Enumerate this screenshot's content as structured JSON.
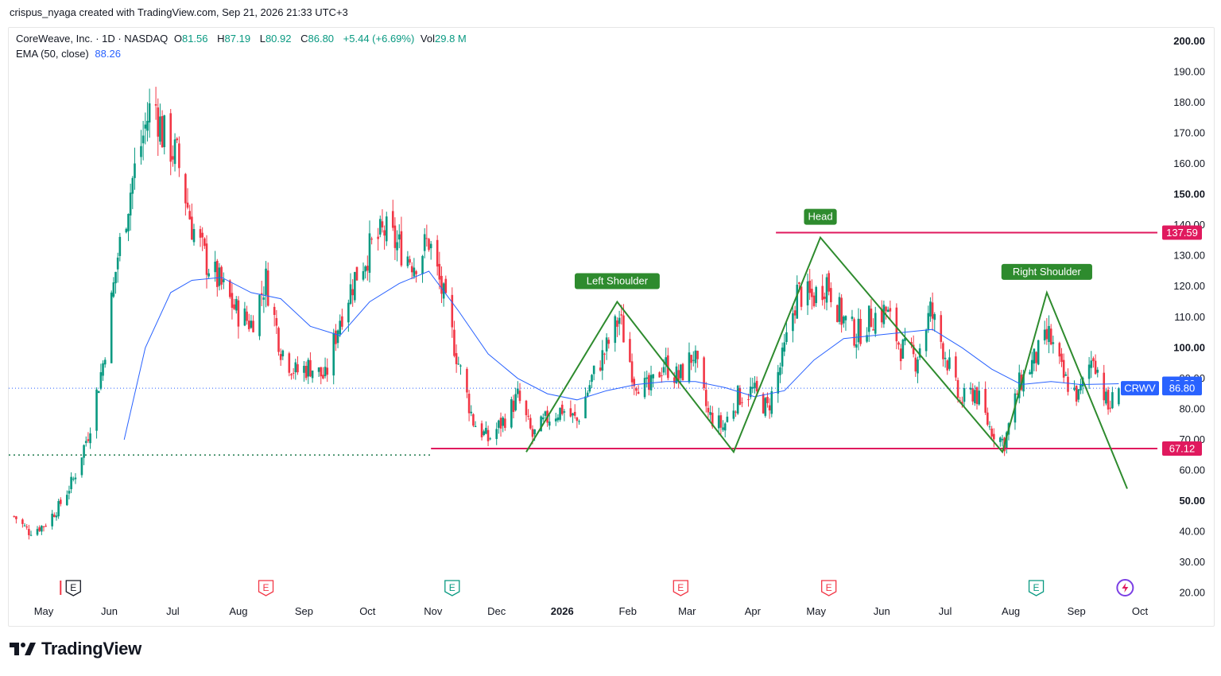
{
  "header": {
    "attribution": "crispus_nyaga created with TradingView.com, Sep 21, 2026 21:33 UTC+3"
  },
  "legend": {
    "symbol": "CoreWeave, Inc. · 1D · NASDAQ",
    "o_label": "O",
    "o_value": "81.56",
    "h_label": "H",
    "h_value": "87.19",
    "l_label": "L",
    "l_value": "80.92",
    "c_label": "C",
    "c_value": "86.80",
    "change": "+5.44 (+6.69%)",
    "vol_label": "Vol",
    "vol_value": "29.8 M",
    "ema_label": "EMA (50, close)",
    "ema_value": "88.26"
  },
  "footer": {
    "brand": "TradingView"
  },
  "colors": {
    "up": "#089981",
    "down": "#f23645",
    "ema": "#2962ff",
    "pattern": "#2e8b2e",
    "level": "#e0195e",
    "price_tag": "#2962ff",
    "dotted_green": "#1e7a4c"
  },
  "chart_data": {
    "type": "candlestick",
    "symbol": "CRWV",
    "y_axis": {
      "min": 15,
      "max": 205,
      "scale": "linear",
      "position": "right",
      "ticks": [
        "20.00",
        "30.00",
        "40.00",
        "50.00",
        "60.00",
        "70.00",
        "80.00",
        "90.00",
        "100.00",
        "110.00",
        "120.00",
        "130.00",
        "140.00",
        "150.00",
        "160.00",
        "170.00",
        "180.00",
        "190.00",
        "200.00"
      ],
      "bold_ticks": [
        "50.00",
        "100.00",
        "150.00",
        "200.00"
      ]
    },
    "x_axis": {
      "labels": [
        {
          "text": "May",
          "date": "2025-05-01"
        },
        {
          "text": "Jun",
          "date": "2025-06-01"
        },
        {
          "text": "Jul",
          "date": "2025-07-01"
        },
        {
          "text": "Aug",
          "date": "2025-08-01"
        },
        {
          "text": "Sep",
          "date": "2025-09-01"
        },
        {
          "text": "Oct",
          "date": "2025-10-01"
        },
        {
          "text": "Nov",
          "date": "2025-11-01"
        },
        {
          "text": "Dec",
          "date": "2025-12-01"
        },
        {
          "text": "2026",
          "date": "2026-01-01",
          "bold": true
        },
        {
          "text": "Feb",
          "date": "2026-02-01"
        },
        {
          "text": "Mar",
          "date": "2026-03-01"
        },
        {
          "text": "Apr",
          "date": "2026-04-01"
        },
        {
          "text": "May",
          "date": "2026-05-01"
        },
        {
          "text": "Jun",
          "date": "2026-06-01"
        },
        {
          "text": "Jul",
          "date": "2026-07-01"
        },
        {
          "text": "Aug",
          "date": "2026-08-01"
        },
        {
          "text": "Sep",
          "date": "2026-09-01"
        },
        {
          "text": "Oct",
          "date": "2026-10-01"
        }
      ]
    },
    "price_path": [
      [
        "2025-04-17",
        45
      ],
      [
        "2025-04-24",
        40
      ],
      [
        "2025-05-01",
        42
      ],
      [
        "2025-05-08",
        48
      ],
      [
        "2025-05-15",
        57
      ],
      [
        "2025-05-22",
        72
      ],
      [
        "2025-05-29",
        95
      ],
      [
        "2025-06-05",
        130
      ],
      [
        "2025-06-12",
        155
      ],
      [
        "2025-06-19",
        175
      ],
      [
        "2025-06-22",
        182
      ],
      [
        "2025-06-26",
        170
      ],
      [
        "2025-07-03",
        162
      ],
      [
        "2025-07-10",
        140
      ],
      [
        "2025-07-17",
        128
      ],
      [
        "2025-07-24",
        120
      ],
      [
        "2025-07-31",
        112
      ],
      [
        "2025-08-07",
        108
      ],
      [
        "2025-08-14",
        122
      ],
      [
        "2025-08-21",
        100
      ],
      [
        "2025-08-28",
        92
      ],
      [
        "2025-09-04",
        94
      ],
      [
        "2025-09-11",
        90
      ],
      [
        "2025-09-18",
        110
      ],
      [
        "2025-09-25",
        123
      ],
      [
        "2025-10-02",
        132
      ],
      [
        "2025-10-09",
        138
      ],
      [
        "2025-10-16",
        133
      ],
      [
        "2025-10-23",
        128
      ],
      [
        "2025-10-30",
        135
      ],
      [
        "2025-11-06",
        116
      ],
      [
        "2025-11-13",
        95
      ],
      [
        "2025-11-20",
        76
      ],
      [
        "2025-11-27",
        70
      ],
      [
        "2025-12-04",
        76
      ],
      [
        "2025-12-11",
        84
      ],
      [
        "2025-12-18",
        71
      ],
      [
        "2025-12-25",
        77
      ],
      [
        "2026-01-01",
        80
      ],
      [
        "2026-01-08",
        76
      ],
      [
        "2026-01-15",
        90
      ],
      [
        "2026-01-22",
        100
      ],
      [
        "2026-01-28",
        110
      ],
      [
        "2026-02-04",
        90
      ],
      [
        "2026-02-11",
        86
      ],
      [
        "2026-02-18",
        95
      ],
      [
        "2026-02-25",
        90
      ],
      [
        "2026-03-04",
        98
      ],
      [
        "2026-03-11",
        78
      ],
      [
        "2026-03-18",
        74
      ],
      [
        "2026-03-25",
        84
      ],
      [
        "2026-04-01",
        86
      ],
      [
        "2026-04-08",
        80
      ],
      [
        "2026-04-15",
        96
      ],
      [
        "2026-04-22",
        118
      ],
      [
        "2026-04-29",
        116
      ],
      [
        "2026-05-06",
        122
      ],
      [
        "2026-05-13",
        110
      ],
      [
        "2026-05-20",
        104
      ],
      [
        "2026-05-27",
        110
      ],
      [
        "2026-06-03",
        112
      ],
      [
        "2026-06-10",
        100
      ],
      [
        "2026-06-17",
        96
      ],
      [
        "2026-06-24",
        112
      ],
      [
        "2026-07-01",
        98
      ],
      [
        "2026-07-08",
        82
      ],
      [
        "2026-07-15",
        86
      ],
      [
        "2026-07-22",
        74
      ],
      [
        "2026-07-29",
        69
      ],
      [
        "2026-08-05",
        88
      ],
      [
        "2026-08-12",
        96
      ],
      [
        "2026-08-19",
        104
      ],
      [
        "2026-08-26",
        90
      ],
      [
        "2026-09-02",
        84
      ],
      [
        "2026-09-09",
        98
      ],
      [
        "2026-09-16",
        80
      ],
      [
        "2026-09-21",
        86.8
      ]
    ],
    "ema_path": [
      [
        "2025-06-08",
        70
      ],
      [
        "2025-06-18",
        100
      ],
      [
        "2025-06-30",
        118
      ],
      [
        "2025-07-10",
        122
      ],
      [
        "2025-07-24",
        123
      ],
      [
        "2025-08-07",
        118
      ],
      [
        "2025-08-21",
        116
      ],
      [
        "2025-09-04",
        107
      ],
      [
        "2025-09-18",
        104
      ],
      [
        "2025-10-02",
        115
      ],
      [
        "2025-10-16",
        121
      ],
      [
        "2025-10-30",
        125
      ],
      [
        "2025-11-13",
        112
      ],
      [
        "2025-11-27",
        98
      ],
      [
        "2025-12-11",
        90
      ],
      [
        "2025-12-25",
        85
      ],
      [
        "2026-01-08",
        83
      ],
      [
        "2026-01-22",
        86
      ],
      [
        "2026-02-05",
        88
      ],
      [
        "2026-02-19",
        89
      ],
      [
        "2026-03-05",
        89
      ],
      [
        "2026-03-19",
        87
      ],
      [
        "2026-04-02",
        84
      ],
      [
        "2026-04-16",
        86
      ],
      [
        "2026-04-30",
        96
      ],
      [
        "2026-05-14",
        103
      ],
      [
        "2026-05-28",
        104
      ],
      [
        "2026-06-11",
        105
      ],
      [
        "2026-06-25",
        106
      ],
      [
        "2026-07-09",
        100
      ],
      [
        "2026-07-23",
        93
      ],
      [
        "2026-08-06",
        88
      ],
      [
        "2026-08-20",
        89
      ],
      [
        "2026-09-03",
        88
      ],
      [
        "2026-09-21",
        88.26
      ]
    ],
    "pattern": {
      "name": "Head and Shoulders",
      "points": [
        [
          "2025-12-15",
          66
        ],
        [
          "2026-01-27",
          115
        ],
        [
          "2026-03-23",
          66
        ],
        [
          "2026-05-03",
          136
        ],
        [
          "2026-07-28",
          66
        ],
        [
          "2026-08-18",
          118
        ],
        [
          "2026-09-25",
          54
        ]
      ],
      "labels": [
        {
          "text": "Left Shoulder",
          "date": "2026-01-27",
          "price": 115
        },
        {
          "text": "Head",
          "date": "2026-05-03",
          "price": 136
        },
        {
          "text": "Right Shoulder",
          "date": "2026-08-18",
          "price": 118
        }
      ]
    },
    "levels": [
      {
        "price": 137.59,
        "from": "2026-04-12",
        "label": "137.59"
      },
      {
        "price": 67.12,
        "from": "2025-10-31",
        "label": "67.12"
      }
    ],
    "support_dotted": {
      "price": 65,
      "from": "2025-04-17",
      "to": "2025-10-31"
    },
    "current_price_line": {
      "price": 86.8
    },
    "price_tags": [
      {
        "text": "88.26",
        "price": 88.26,
        "kind": "ema"
      },
      {
        "text": "86.80",
        "price": 86.8,
        "kind": "close"
      }
    ],
    "ticker_tag": "CRWV",
    "earnings_markers": [
      {
        "date": "2025-05-15",
        "label": "E",
        "kind": "past-box"
      },
      {
        "date": "2025-08-14",
        "label": "E",
        "kind": "past"
      },
      {
        "date": "2025-11-10",
        "label": "E",
        "kind": "beat"
      },
      {
        "date": "2026-02-26",
        "label": "E",
        "kind": "past"
      },
      {
        "date": "2026-05-07",
        "label": "E",
        "kind": "past"
      },
      {
        "date": "2026-08-13",
        "label": "E",
        "kind": "beat"
      },
      {
        "date": "2026-09-24",
        "label": "",
        "kind": "upcoming"
      }
    ]
  }
}
